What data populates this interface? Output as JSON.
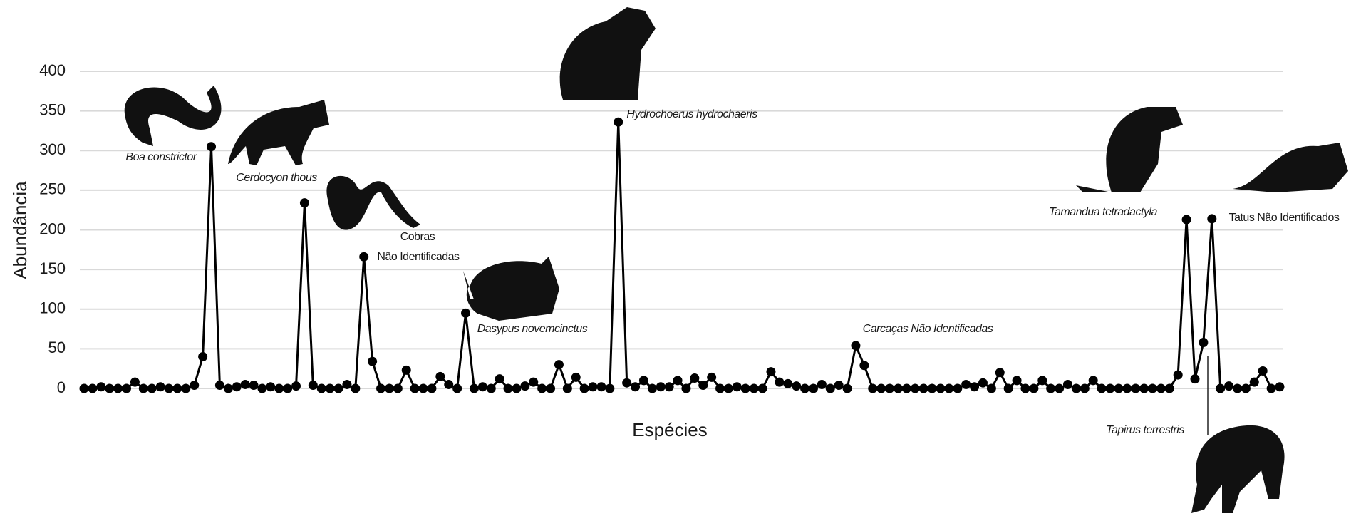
{
  "chart_data": {
    "type": "line",
    "y_label": "Abundância",
    "x_label": "Espécies",
    "color": "#000000",
    "grid": true,
    "ylim": [
      0,
      400
    ],
    "yticks": [
      0,
      50,
      100,
      150,
      200,
      250,
      300,
      350,
      400
    ],
    "values": [
      0,
      0,
      2,
      0,
      0,
      0,
      8,
      0,
      0,
      2,
      0,
      0,
      0,
      4,
      40,
      305,
      4,
      0,
      2,
      5,
      4,
      0,
      2,
      0,
      0,
      3,
      234,
      4,
      0,
      0,
      0,
      5,
      0,
      166,
      34,
      0,
      0,
      0,
      23,
      0,
      0,
      0,
      15,
      5,
      0,
      95,
      0,
      2,
      0,
      12,
      0,
      0,
      3,
      8,
      0,
      0,
      30,
      0,
      14,
      0,
      2,
      2,
      0,
      336,
      7,
      2,
      10,
      0,
      2,
      2,
      10,
      0,
      13,
      4,
      14,
      0,
      0,
      2,
      0,
      0,
      0,
      21,
      8,
      6,
      3,
      0,
      0,
      5,
      0,
      4,
      0,
      54,
      29,
      0,
      0,
      0,
      0,
      0,
      0,
      0,
      0,
      0,
      0,
      0,
      5,
      2,
      7,
      0,
      20,
      0,
      10,
      0,
      0,
      10,
      0,
      0,
      5,
      0,
      0,
      10,
      0,
      0,
      0,
      0,
      0,
      0,
      0,
      0,
      0,
      17,
      213,
      12,
      58,
      214,
      0,
      3,
      0,
      0,
      8,
      22,
      0,
      2
    ],
    "annotations": [
      "Boa constrictor",
      "Cerdocyon thous",
      "Cobras",
      "Não Identificadas",
      "Dasypus novemcinctus",
      "Hydrochoerus hydrochaeris",
      "Carcaças Não Identificadas",
      "Tamandua tetradactyla",
      "Tatus Não Identificados",
      "Tapirus terrestris"
    ]
  }
}
